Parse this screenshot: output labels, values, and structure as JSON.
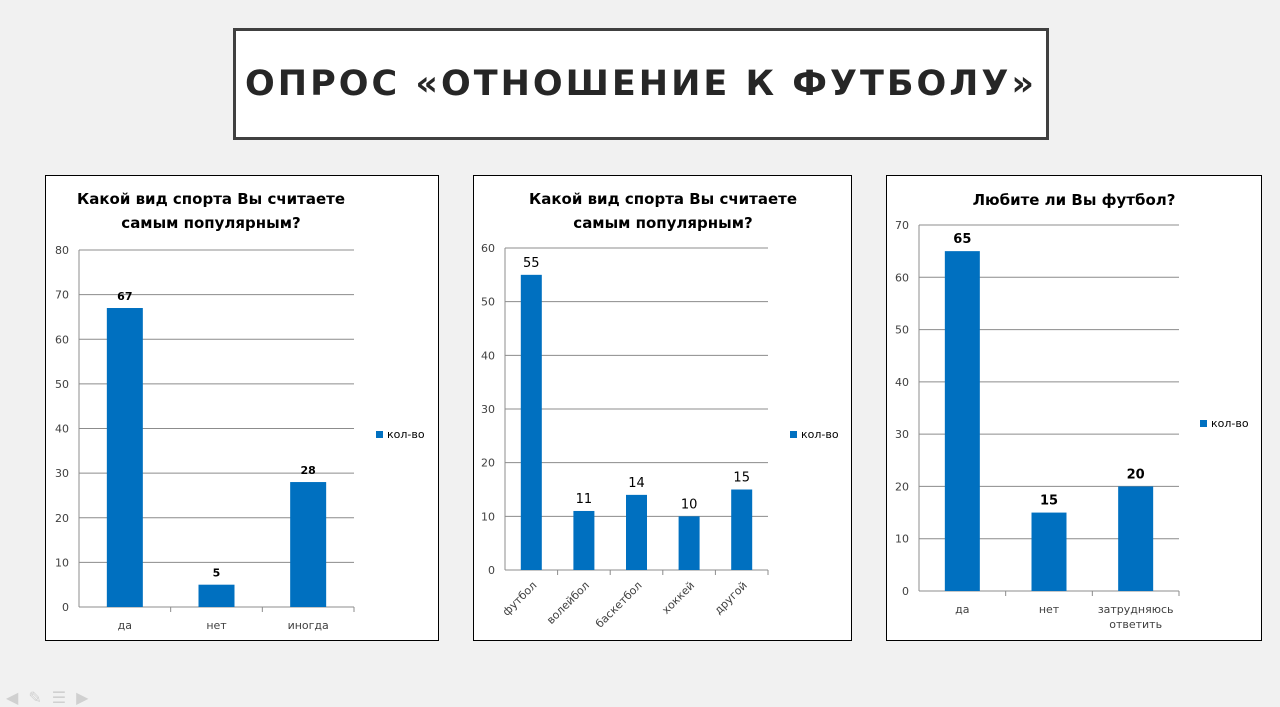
{
  "slide": {
    "title": "ОПРОС «ОТНОШЕНИЕ К ФУТБОЛУ»"
  },
  "colors": {
    "bar": "#0070c0",
    "grid": "#8c8c8c",
    "text": "#000000",
    "background": "#f1f1f1"
  },
  "nav_icons": [
    "arrow-left-icon",
    "pen-icon",
    "menu-icon",
    "arrow-right-icon"
  ],
  "chart_data": [
    {
      "type": "bar",
      "title": [
        "Какой вид спорта Вы считаете",
        "самым популярным?"
      ],
      "categories": [
        "да",
        "нет",
        "иногда"
      ],
      "series": [
        {
          "name": "кол-во",
          "values": [
            67,
            5,
            28
          ]
        }
      ],
      "ylim": [
        0,
        80
      ],
      "yticks": [
        0,
        10,
        20,
        30,
        40,
        50,
        60,
        70,
        80
      ],
      "grid": true,
      "legend": "right",
      "data_labels_bold": true,
      "xlabel": "",
      "ylabel": ""
    },
    {
      "type": "bar",
      "title": [
        "Какой вид спорта Вы считаете",
        "самым популярным?"
      ],
      "categories": [
        "футбол",
        "волейбол",
        "баскетбол",
        "хоккей",
        "другой"
      ],
      "series": [
        {
          "name": "кол-во",
          "values": [
            55,
            11,
            14,
            10,
            15
          ]
        }
      ],
      "ylim": [
        0,
        60
      ],
      "yticks": [
        0,
        10,
        20,
        30,
        40,
        50,
        60
      ],
      "grid": true,
      "legend": "right",
      "data_labels_bold": false,
      "rotated_category_labels": true,
      "xlabel": "",
      "ylabel": ""
    },
    {
      "type": "bar",
      "title": [
        "Любите ли Вы футбол?"
      ],
      "categories": [
        "да",
        "нет",
        "затрудняюсь ответить"
      ],
      "series": [
        {
          "name": "кол-во",
          "values": [
            65,
            15,
            20
          ]
        }
      ],
      "ylim": [
        0,
        70
      ],
      "yticks": [
        0,
        10,
        20,
        30,
        40,
        50,
        60,
        70
      ],
      "grid": true,
      "legend": "right",
      "data_labels_bold": true,
      "xlabel": "",
      "ylabel": ""
    }
  ]
}
